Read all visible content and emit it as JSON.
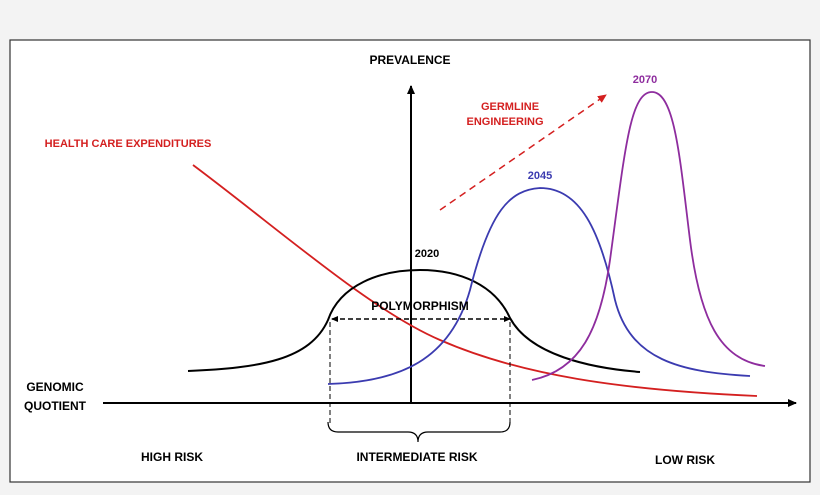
{
  "axes": {
    "y_label": "PREVALENCE",
    "x_label_lines": [
      "GENOMIC",
      "QUOTIENT"
    ]
  },
  "annotations": {
    "expenditures": "HEALTH CARE EXPENDITURES",
    "germline_lines": [
      "GERMLINE",
      "ENGINEERING"
    ],
    "polymorphism": "POLYMORPHISM"
  },
  "curves": [
    {
      "label": "2020"
    },
    {
      "label": "2045"
    },
    {
      "label": "2070"
    }
  ],
  "regions": [
    "HIGH RISK",
    "INTERMEDIATE RISK",
    "LOW RISK"
  ]
}
